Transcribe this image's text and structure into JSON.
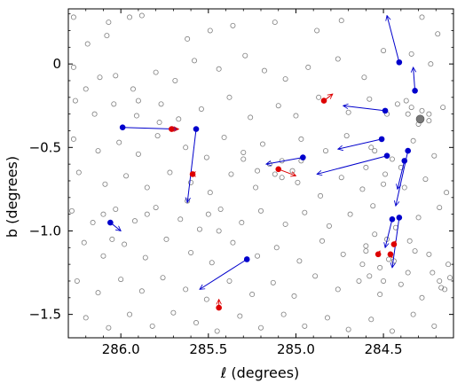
{
  "chart_data": {
    "type": "scatter",
    "xlabel": "ℓ (degrees)",
    "ylabel": "b (degrees)",
    "x_reversed": true,
    "xlim": [
      286.3,
      284.1
    ],
    "ylim": [
      -1.64,
      0.33
    ],
    "x_ticks": [
      286.0,
      285.5,
      285.0,
      284.5
    ],
    "x_tick_labels": [
      "286.0",
      "285.5",
      "285.0",
      "284.5"
    ],
    "y_ticks": [
      0,
      -0.5,
      -1.0,
      -1.5
    ],
    "y_tick_labels": [
      "0",
      "−0.5",
      "−1.0",
      "−1.5"
    ],
    "grid": false,
    "colors": {
      "field": "#808080",
      "blue_star": "#0000cc",
      "red_star": "#dd0000",
      "cluster": "#777777"
    },
    "field_stars": [
      [
        286.27,
        0.28
      ],
      [
        286.07,
        0.25
      ],
      [
        285.95,
        0.28
      ],
      [
        285.88,
        0.29
      ],
      [
        286.08,
        0.17
      ],
      [
        286.19,
        0.12
      ],
      [
        285.62,
        0.15
      ],
      [
        285.49,
        0.2
      ],
      [
        285.36,
        0.23
      ],
      [
        285.12,
        0.25
      ],
      [
        284.88,
        0.2
      ],
      [
        284.74,
        0.26
      ],
      [
        284.28,
        0.28
      ],
      [
        284.19,
        0.18
      ],
      [
        286.27,
        -0.02
      ],
      [
        286.12,
        -0.08
      ],
      [
        286.2,
        -0.15
      ],
      [
        286.03,
        -0.07
      ],
      [
        285.93,
        -0.15
      ],
      [
        285.8,
        -0.05
      ],
      [
        285.69,
        -0.1
      ],
      [
        285.58,
        0.02
      ],
      [
        285.44,
        -0.03
      ],
      [
        285.29,
        0.05
      ],
      [
        285.18,
        -0.04
      ],
      [
        285.06,
        -0.09
      ],
      [
        284.93,
        -0.02
      ],
      [
        284.76,
        0.03
      ],
      [
        284.61,
        -0.08
      ],
      [
        284.5,
        0.08
      ],
      [
        284.34,
        0.06
      ],
      [
        284.23,
        0.0
      ],
      [
        286.26,
        -0.22
      ],
      [
        286.15,
        -0.3
      ],
      [
        286.04,
        -0.24
      ],
      [
        285.91,
        -0.31
      ],
      [
        285.77,
        -0.24
      ],
      [
        285.67,
        -0.33
      ],
      [
        285.54,
        -0.27
      ],
      [
        285.38,
        -0.2
      ],
      [
        285.26,
        -0.32
      ],
      [
        285.1,
        -0.25
      ],
      [
        285.0,
        -0.31
      ],
      [
        284.87,
        -0.2
      ],
      [
        284.7,
        -0.29
      ],
      [
        284.58,
        -0.21
      ],
      [
        284.48,
        -0.3
      ],
      [
        284.37,
        -0.22
      ],
      [
        284.24,
        -0.34
      ],
      [
        284.16,
        -0.26
      ],
      [
        286.27,
        -0.45
      ],
      [
        286.13,
        -0.52
      ],
      [
        286.01,
        -0.47
      ],
      [
        285.9,
        -0.54
      ],
      [
        285.79,
        -0.43
      ],
      [
        285.63,
        -0.5
      ],
      [
        285.51,
        -0.56
      ],
      [
        285.41,
        -0.44
      ],
      [
        285.3,
        -0.53
      ],
      [
        285.19,
        -0.48
      ],
      [
        285.08,
        -0.58
      ],
      [
        284.97,
        -0.45
      ],
      [
        284.83,
        -0.52
      ],
      [
        284.71,
        -0.43
      ],
      [
        284.57,
        -0.5
      ],
      [
        284.45,
        -0.57
      ],
      [
        284.33,
        -0.46
      ],
      [
        284.21,
        -0.55
      ],
      [
        286.24,
        -0.65
      ],
      [
        286.09,
        -0.72
      ],
      [
        285.97,
        -0.67
      ],
      [
        285.85,
        -0.74
      ],
      [
        285.72,
        -0.65
      ],
      [
        285.6,
        -0.71
      ],
      [
        285.49,
        -0.77
      ],
      [
        285.37,
        -0.66
      ],
      [
        285.23,
        -0.74
      ],
      [
        285.12,
        -0.66
      ],
      [
        284.99,
        -0.71
      ],
      [
        284.86,
        -0.79
      ],
      [
        284.74,
        -0.68
      ],
      [
        284.62,
        -0.75
      ],
      [
        284.49,
        -0.66
      ],
      [
        284.38,
        -0.74
      ],
      [
        284.26,
        -0.69
      ],
      [
        284.14,
        -0.77
      ],
      [
        286.28,
        -0.88
      ],
      [
        286.16,
        -0.95
      ],
      [
        286.03,
        -0.87
      ],
      [
        285.92,
        -0.94
      ],
      [
        285.8,
        -0.86
      ],
      [
        285.66,
        -0.93
      ],
      [
        285.55,
        -0.99
      ],
      [
        285.43,
        -0.87
      ],
      [
        285.31,
        -0.95
      ],
      [
        285.2,
        -0.88
      ],
      [
        285.06,
        -0.96
      ],
      [
        284.95,
        -0.89
      ],
      [
        284.81,
        -0.97
      ],
      [
        284.69,
        -0.9
      ],
      [
        284.56,
        -0.85
      ],
      [
        284.43,
        -0.98
      ],
      [
        284.3,
        -0.92
      ],
      [
        284.18,
        -0.86
      ],
      [
        286.21,
        -1.07
      ],
      [
        286.1,
        -1.15
      ],
      [
        285.98,
        -1.08
      ],
      [
        285.86,
        -1.16
      ],
      [
        285.74,
        -1.05
      ],
      [
        285.6,
        -1.13
      ],
      [
        285.48,
        -1.19
      ],
      [
        285.36,
        -1.07
      ],
      [
        285.22,
        -1.15
      ],
      [
        285.11,
        -1.1
      ],
      [
        284.98,
        -1.18
      ],
      [
        284.85,
        -1.06
      ],
      [
        284.73,
        -1.14
      ],
      [
        284.6,
        -1.09
      ],
      [
        284.47,
        -1.17
      ],
      [
        284.35,
        -1.06
      ],
      [
        284.24,
        -1.14
      ],
      [
        284.13,
        -1.2
      ],
      [
        286.25,
        -1.3
      ],
      [
        286.13,
        -1.37
      ],
      [
        286.0,
        -1.29
      ],
      [
        285.88,
        -1.36
      ],
      [
        285.76,
        -1.28
      ],
      [
        285.63,
        -1.35
      ],
      [
        285.51,
        -1.41
      ],
      [
        285.38,
        -1.3
      ],
      [
        285.25,
        -1.38
      ],
      [
        285.13,
        -1.31
      ],
      [
        285.01,
        -1.39
      ],
      [
        284.89,
        -1.27
      ],
      [
        284.76,
        -1.35
      ],
      [
        284.64,
        -1.3
      ],
      [
        284.52,
        -1.38
      ],
      [
        284.4,
        -1.32
      ],
      [
        284.28,
        -1.4
      ],
      [
        284.17,
        -1.34
      ],
      [
        286.2,
        -1.52
      ],
      [
        286.07,
        -1.58
      ],
      [
        285.95,
        -1.5
      ],
      [
        285.82,
        -1.57
      ],
      [
        285.7,
        -1.49
      ],
      [
        285.57,
        -1.55
      ],
      [
        285.45,
        -1.6
      ],
      [
        285.32,
        -1.51
      ],
      [
        285.2,
        -1.58
      ],
      [
        285.07,
        -1.5
      ],
      [
        284.95,
        -1.57
      ],
      [
        284.82,
        -1.52
      ],
      [
        284.7,
        -1.59
      ],
      [
        284.57,
        -1.53
      ],
      [
        284.45,
        -1.6
      ],
      [
        284.33,
        -1.5
      ],
      [
        284.21,
        -1.57
      ],
      [
        284.55,
        -1.02
      ],
      [
        284.6,
        -1.12
      ],
      [
        284.52,
        -1.22
      ],
      [
        284.48,
        -1.05
      ],
      [
        284.58,
        -1.27
      ],
      [
        284.44,
        -1.18
      ],
      [
        284.62,
        -1.2
      ],
      [
        284.5,
        -1.3
      ],
      [
        284.36,
        -1.25
      ],
      [
        284.32,
        -1.12
      ],
      [
        284.4,
        -0.62
      ],
      [
        284.55,
        -0.52
      ],
      [
        284.6,
        -0.62
      ],
      [
        284.5,
        -0.72
      ],
      [
        284.28,
        -0.28
      ],
      [
        284.36,
        -0.3
      ],
      [
        284.3,
        -0.36
      ],
      [
        284.34,
        -0.26
      ],
      [
        284.24,
        -0.3
      ],
      [
        284.42,
        -0.24
      ],
      [
        285.15,
        -0.6
      ],
      [
        285.22,
        -0.64
      ],
      [
        285.02,
        -0.64
      ],
      [
        284.97,
        -0.58
      ],
      [
        285.3,
        -0.57
      ],
      [
        285.08,
        -0.68
      ],
      [
        284.18,
        -1.3
      ],
      [
        284.15,
        -1.35
      ],
      [
        284.22,
        -1.25
      ],
      [
        284.12,
        -1.28
      ],
      [
        285.78,
        -0.35
      ],
      [
        285.9,
        -0.22
      ],
      [
        285.5,
        -0.9
      ],
      [
        285.62,
        -0.82
      ],
      [
        285.44,
        -1.0
      ],
      [
        285.85,
        -0.9
      ],
      [
        286.1,
        -0.9
      ],
      [
        286.05,
        -1.05
      ]
    ],
    "cluster": [
      284.29,
      -0.33
    ],
    "blue_stars": [
      {
        "pos": [
          285.99,
          -0.38
        ],
        "to": [
          285.68,
          -0.39
        ]
      },
      {
        "pos": [
          285.57,
          -0.39
        ],
        "to": [
          285.62,
          -0.83
        ]
      },
      {
        "pos": [
          284.96,
          -0.56
        ],
        "to": [
          285.17,
          -0.6
        ]
      },
      {
        "pos": [
          284.49,
          -0.28
        ],
        "to": [
          284.73,
          -0.25
        ]
      },
      {
        "pos": [
          284.51,
          -0.45
        ],
        "to": [
          284.76,
          -0.51
        ]
      },
      {
        "pos": [
          284.48,
          -0.55
        ],
        "to": [
          284.88,
          -0.66
        ]
      },
      {
        "pos": [
          284.41,
          0.01
        ],
        "to": [
          284.48,
          0.29
        ]
      },
      {
        "pos": [
          284.32,
          -0.16
        ],
        "to": [
          284.33,
          -0.02
        ]
      },
      {
        "pos": [
          284.38,
          -0.58
        ],
        "to": [
          284.42,
          -0.75
        ]
      },
      {
        "pos": [
          284.36,
          -0.52
        ],
        "to": [
          284.43,
          -0.85
        ]
      },
      {
        "pos": [
          284.41,
          -0.92
        ],
        "to": [
          284.45,
          -1.22
        ]
      },
      {
        "pos": [
          284.45,
          -0.93
        ],
        "to": [
          284.49,
          -1.1
        ]
      },
      {
        "pos": [
          286.06,
          -0.95
        ],
        "to": [
          286.0,
          -1.0
        ]
      },
      {
        "pos": [
          285.28,
          -1.17
        ],
        "to": [
          285.55,
          -1.35
        ]
      }
    ],
    "red_stars": [
      {
        "pos": [
          285.71,
          -0.39
        ],
        "to": [
          285.67,
          -0.39
        ]
      },
      {
        "pos": [
          284.84,
          -0.22
        ],
        "to": [
          284.79,
          -0.18
        ]
      },
      {
        "pos": [
          285.1,
          -0.63
        ],
        "to": [
          285.0,
          -0.67
        ]
      },
      {
        "pos": [
          285.59,
          -0.66
        ],
        "to": [
          285.6,
          -0.66
        ]
      },
      {
        "pos": [
          285.44,
          -1.46
        ],
        "to": [
          285.44,
          -1.41
        ]
      },
      {
        "pos": [
          284.53,
          -1.14
        ],
        "to": [
          284.52,
          -1.12
        ]
      },
      {
        "pos": [
          284.44,
          -1.08
        ],
        "to": [
          284.43,
          -1.06
        ]
      },
      {
        "pos": [
          284.46,
          -1.14
        ],
        "to": [
          284.45,
          -1.16
        ]
      }
    ]
  }
}
